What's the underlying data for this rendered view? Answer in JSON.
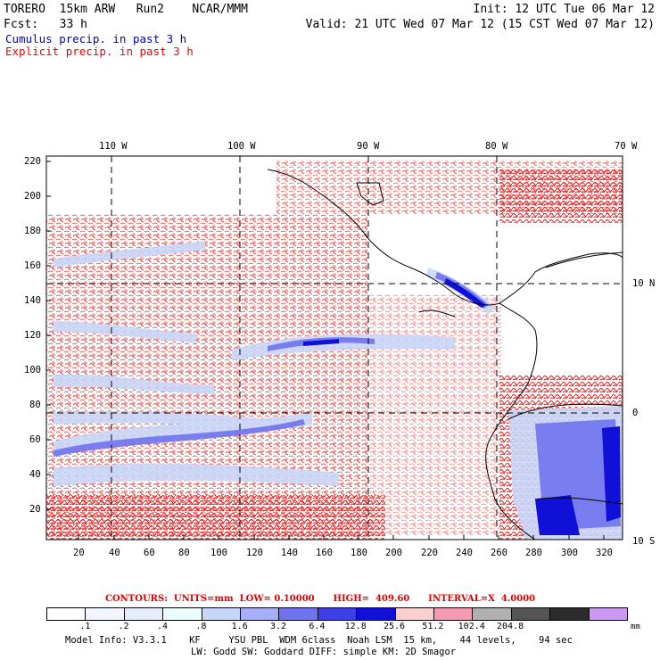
{
  "header": {
    "line1_left": "TORERO  15km ARW   Run2    NCAR/MMM",
    "line1_right": "Init: 12 UTC Tue 06 Mar 12",
    "line2_left": "Fcst:   33 h",
    "line2_right": "Valid: 21 UTC Wed 07 Mar 12 (15 CST Wed 07 Mar 12)",
    "cumulus_label": "Cumulus precip. in past 3 h",
    "explicit_label": "Explicit precip. in past 3 h"
  },
  "map": {
    "top_longitudes": [
      "110 W",
      "100 W",
      "90 W",
      "80 W",
      "70 W"
    ],
    "right_latitudes": [
      "10 N",
      "0",
      "10 S"
    ],
    "y_ticks": [
      "220",
      "200",
      "180",
      "160",
      "140",
      "120",
      "100",
      "80",
      "60",
      "40",
      "20"
    ],
    "x_ticks": [
      "20",
      "40",
      "60",
      "80",
      "100",
      "120",
      "140",
      "160",
      "180",
      "200",
      "220",
      "240",
      "260",
      "280",
      "300",
      "320"
    ],
    "colors": {
      "coast": "#000000",
      "explicit_contour": "#dd0000",
      "grid": "#000000"
    }
  },
  "contours_info": {
    "label": "CONTOURS:  UNITS=mm  LOW= 0.10000      HIGH=  409.60      INTERVAL=X  4.0000"
  },
  "colorbar": {
    "colors": [
      "#ffffff",
      "#f2f4ff",
      "#e6ecff",
      "#eafcfc",
      "#c8d6f8",
      "#a7aef5",
      "#6f73ee",
      "#3f3fe8",
      "#1010d8",
      "#fbd0d0",
      "#f49ab2",
      "#b0b0b0",
      "#555555",
      "#2b2b2b",
      "#cc99f2"
    ],
    "labels": [
      ".1",
      ".2",
      ".4",
      ".8",
      "1.6",
      "3.2",
      "6.4",
      "12.8",
      "25.6",
      "51.2",
      "102.4",
      "204.8"
    ],
    "units": "mm"
  },
  "model_info": {
    "line1": "Model Info: V3.3.1    KF     YSU PBL  WDM 6class  Noah LSM  15 km,    44 levels,    94 sec",
    "line2": "LW: Godd SW: Goddard DIFF: simple KM: 2D Smagor"
  }
}
